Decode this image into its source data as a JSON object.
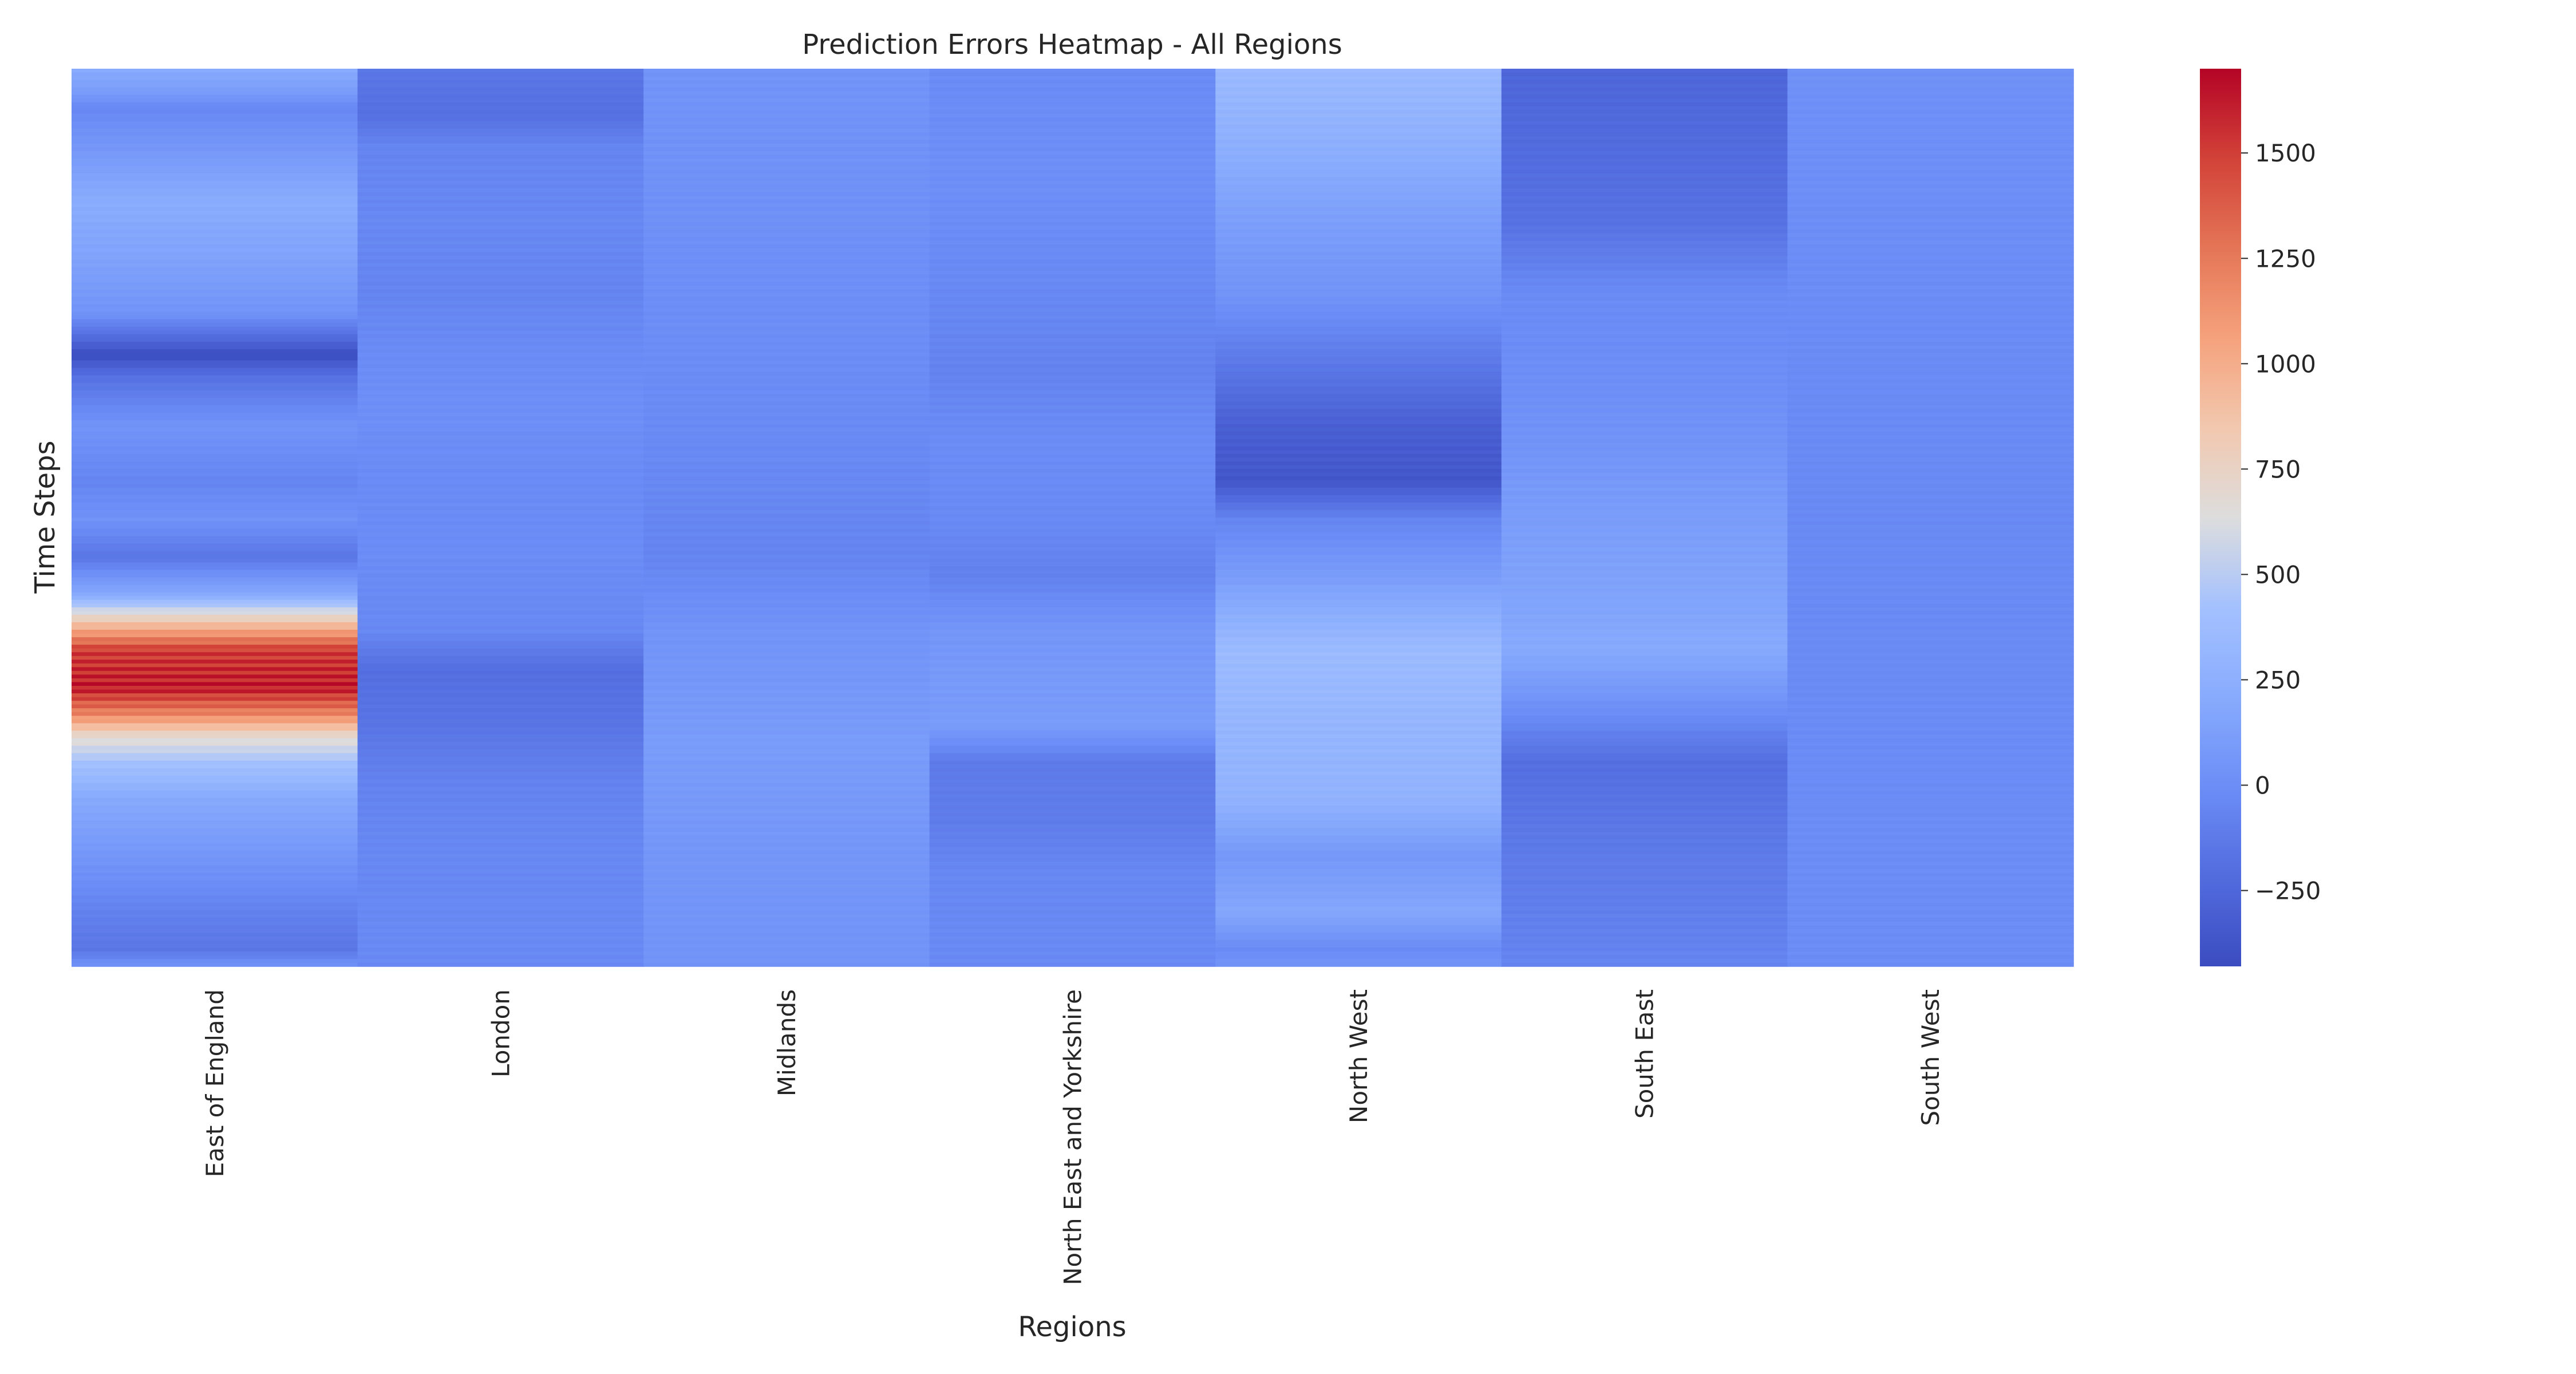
{
  "chart_data": {
    "type": "heatmap",
    "title": "Prediction Errors Heatmap - All Regions",
    "xlabel": "Regions",
    "ylabel": "Time Steps",
    "colormap": "coolwarm",
    "color_low": "#3b4cc0",
    "color_mid": "#dddddd",
    "color_high": "#b40426",
    "vmin": -430,
    "vmax": 1700,
    "grid": false,
    "legend": "colorbar-right",
    "colorbar_ticks": [
      {
        "value": -250,
        "label": "−250"
      },
      {
        "value": 0,
        "label": "0"
      },
      {
        "value": 250,
        "label": "250"
      },
      {
        "value": 500,
        "label": "500"
      },
      {
        "value": 750,
        "label": "750"
      },
      {
        "value": 1000,
        "label": "1000"
      },
      {
        "value": 1250,
        "label": "1250"
      },
      {
        "value": 1500,
        "label": "1500"
      }
    ],
    "num_time_steps": 240,
    "categories": [
      "East of England",
      "London",
      "Midlands",
      "North East and Yorkshire",
      "North West",
      "South East",
      "South West"
    ],
    "series": [
      {
        "name": "East of England",
        "profile": [
          [
            0,
            200
          ],
          [
            5,
            120
          ],
          [
            10,
            -40
          ],
          [
            20,
            60
          ],
          [
            35,
            220
          ],
          [
            50,
            150
          ],
          [
            65,
            40
          ],
          [
            72,
            -250
          ],
          [
            76,
            -420
          ],
          [
            82,
            -180
          ],
          [
            95,
            40
          ],
          [
            110,
            -60
          ],
          [
            120,
            30
          ],
          [
            130,
            -150
          ],
          [
            140,
            200
          ],
          [
            148,
            900
          ],
          [
            155,
            1500
          ],
          [
            165,
            1620
          ],
          [
            172,
            1200
          ],
          [
            178,
            700
          ],
          [
            185,
            420
          ],
          [
            195,
            200
          ],
          [
            210,
            60
          ],
          [
            225,
            -80
          ],
          [
            235,
            -150
          ],
          [
            239,
            20
          ]
        ]
      },
      {
        "name": "London",
        "profile": [
          [
            0,
            -150
          ],
          [
            12,
            -190
          ],
          [
            20,
            -60
          ],
          [
            40,
            -40
          ],
          [
            60,
            -60
          ],
          [
            75,
            -20
          ],
          [
            90,
            10
          ],
          [
            110,
            -20
          ],
          [
            130,
            -10
          ],
          [
            150,
            -40
          ],
          [
            160,
            -200
          ],
          [
            175,
            -160
          ],
          [
            190,
            -70
          ],
          [
            210,
            -40
          ],
          [
            239,
            -30
          ]
        ]
      },
      {
        "name": "Midlands",
        "profile": [
          [
            0,
            40
          ],
          [
            40,
            20
          ],
          [
            80,
            -10
          ],
          [
            110,
            -40
          ],
          [
            130,
            -60
          ],
          [
            150,
            40
          ],
          [
            180,
            100
          ],
          [
            210,
            60
          ],
          [
            239,
            40
          ]
        ]
      },
      {
        "name": "North East and Yorkshire",
        "profile": [
          [
            0,
            -20
          ],
          [
            30,
            10
          ],
          [
            60,
            -40
          ],
          [
            80,
            -70
          ],
          [
            100,
            -10
          ],
          [
            120,
            -30
          ],
          [
            135,
            -80
          ],
          [
            150,
            60
          ],
          [
            175,
            100
          ],
          [
            185,
            -120
          ],
          [
            200,
            -110
          ],
          [
            215,
            -40
          ],
          [
            239,
            -30
          ]
        ]
      },
      {
        "name": "North West",
        "profile": [
          [
            0,
            350
          ],
          [
            20,
            250
          ],
          [
            40,
            120
          ],
          [
            60,
            40
          ],
          [
            75,
            -100
          ],
          [
            95,
            -300
          ],
          [
            110,
            -360
          ],
          [
            120,
            -60
          ],
          [
            135,
            100
          ],
          [
            155,
            360
          ],
          [
            175,
            310
          ],
          [
            195,
            280
          ],
          [
            210,
            70
          ],
          [
            225,
            180
          ],
          [
            235,
            -20
          ],
          [
            239,
            40
          ]
        ]
      },
      {
        "name": "South East",
        "profile": [
          [
            0,
            -260
          ],
          [
            40,
            -180
          ],
          [
            60,
            -20
          ],
          [
            80,
            0
          ],
          [
            100,
            40
          ],
          [
            120,
            110
          ],
          [
            140,
            150
          ],
          [
            155,
            200
          ],
          [
            170,
            20
          ],
          [
            185,
            -200
          ],
          [
            210,
            -120
          ],
          [
            230,
            -80
          ],
          [
            239,
            -60
          ]
        ]
      },
      {
        "name": "South West",
        "profile": [
          [
            0,
            20
          ],
          [
            40,
            0
          ],
          [
            80,
            -20
          ],
          [
            120,
            -30
          ],
          [
            160,
            -20
          ],
          [
            200,
            -10
          ],
          [
            239,
            -10
          ]
        ]
      }
    ]
  }
}
